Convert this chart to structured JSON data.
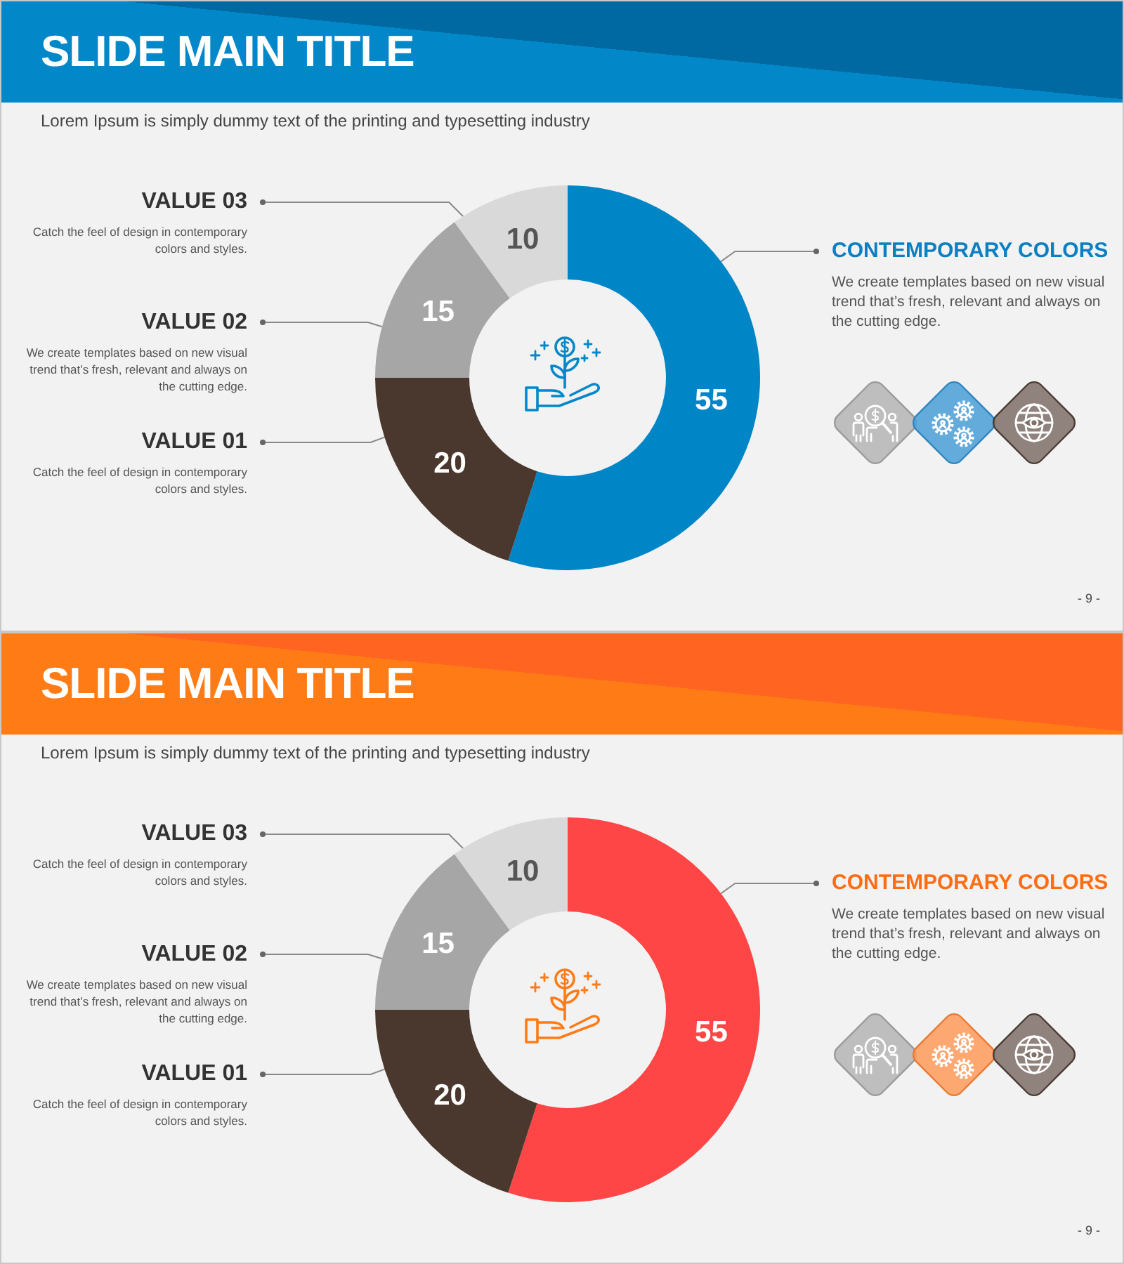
{
  "chart_data": [
    {
      "type": "donut",
      "title": "SLIDE MAIN TITLE",
      "subtitle": "Lorem Ipsum is simply dummy text of the printing and typesetting industry",
      "categories": [
        "CONTEMPORARY COLORS",
        "VALUE 01",
        "VALUE 02",
        "VALUE 03"
      ],
      "values": [
        55,
        20,
        15,
        10
      ],
      "colors": [
        "#0085c7",
        "#4a372d",
        "#a6a6a6",
        "#d9d9d9"
      ],
      "data_labels": true,
      "annotations": [
        "We create templates based on new visual trend that’s fresh, relevant and always on the cutting edge.",
        "Catch the feel of design in contemporary colors and styles.",
        "We create templates based on new visual trend that’s fresh, relevant and always on the cutting edge.",
        "Catch the feel of design in contemporary colors and styles.",
        "- 9 -"
      ]
    },
    {
      "type": "donut",
      "title": "SLIDE MAIN TITLE",
      "subtitle": "Lorem Ipsum is simply dummy text of the printing and typesetting industry",
      "categories": [
        "CONTEMPORARY COLORS",
        "VALUE 01",
        "VALUE 02",
        "VALUE 03"
      ],
      "values": [
        55,
        20,
        15,
        10
      ],
      "colors": [
        "#ff4646",
        "#4a372d",
        "#a6a6a6",
        "#d9d9d9"
      ],
      "data_labels": true,
      "annotations": [
        "We create templates based on new visual trend that’s fresh, relevant and always on the cutting edge.",
        "Catch the feel of design in contemporary colors and styles.",
        "We create templates based on new visual trend that’s fresh, relevant and always on the cutting edge.",
        "Catch the feel of design in contemporary colors and styles.",
        "- 9 -"
      ]
    }
  ]
}
